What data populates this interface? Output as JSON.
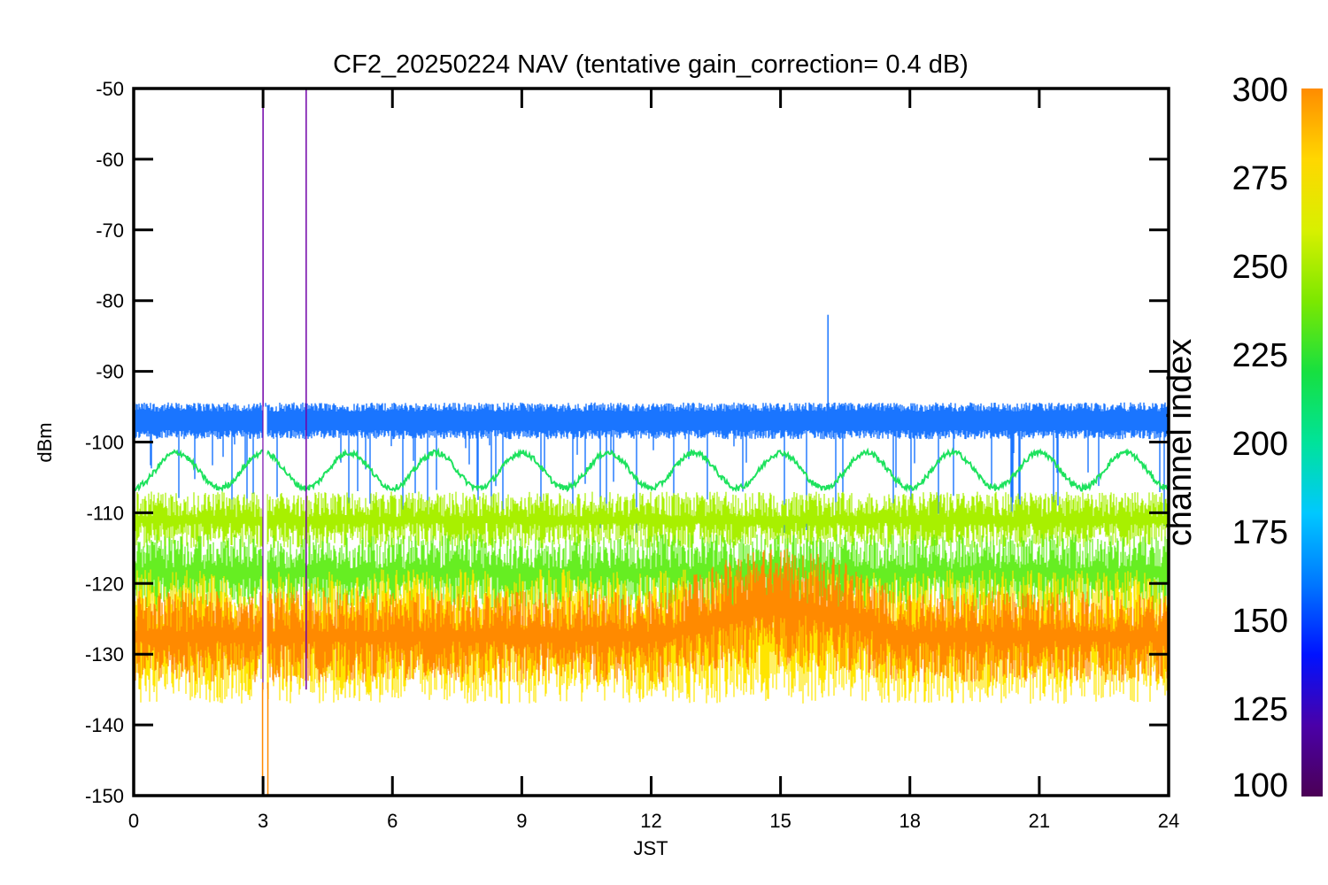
{
  "chart_data": {
    "type": "line",
    "title": "CF2_20250224 NAV (tentative gain_correction=  0.4 dB)",
    "xlabel": "JST",
    "ylabel": "dBm",
    "xlim": [
      0,
      24
    ],
    "ylim": [
      -150,
      -50
    ],
    "x_ticks": [
      0,
      3,
      6,
      9,
      12,
      15,
      18,
      21,
      24
    ],
    "y_ticks": [
      -50,
      -60,
      -70,
      -80,
      -90,
      -100,
      -110,
      -120,
      -130,
      -140,
      -150
    ],
    "grid": false,
    "colorbar": {
      "label": "channel index",
      "range": [
        100,
        300
      ],
      "ticks": [
        300,
        275,
        250,
        225,
        200,
        175,
        150,
        125,
        100
      ],
      "colormap": [
        "#4b0055",
        "#4a00a8",
        "#0012ff",
        "#0077ff",
        "#00c8ff",
        "#00e39a",
        "#17e040",
        "#7ce800",
        "#d8f000",
        "#ffd700",
        "#ff8c00"
      ]
    },
    "series": [
      {
        "channel": 150,
        "color": "#1a75ff",
        "level_dbm": -97,
        "noise_dbm": 1.3,
        "dips_to_dbm": -110,
        "spikes_to_dbm": -82
      },
      {
        "channel": 240,
        "color": "#1ee25e",
        "level_dbm": -104,
        "oscillation_amplitude_dbm": 2.5,
        "oscillation_period_h": 2.0
      },
      {
        "channel": 265,
        "color": "#a8f000",
        "range_dbm": [
          -115,
          -107
        ]
      },
      {
        "channel": 250,
        "color": "#66ee22",
        "range_dbm": [
          -124,
          -113
        ]
      },
      {
        "channel": 270,
        "color": "#ffe500",
        "range_dbm": [
          -137,
          -118
        ]
      },
      {
        "channel": 290,
        "color": "#ff8a00",
        "range_dbm": [
          -134,
          -121
        ],
        "daytime_range_dbm": [
          -132,
          -115
        ],
        "daytime_hours": [
          12.3,
          17.8
        ]
      },
      {
        "channel": 110,
        "color": "#7000a8",
        "spikes_at_h": [
          3.0,
          4.0
        ],
        "spike_to_dbm": -50
      }
    ]
  }
}
